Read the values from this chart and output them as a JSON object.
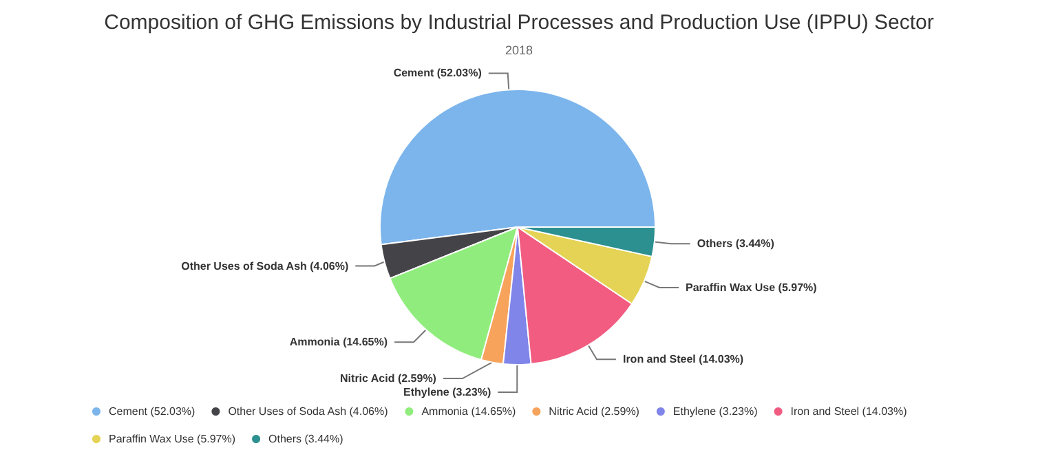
{
  "chart_data": {
    "type": "pie",
    "title": "Composition of GHG Emissions by Industrial Processes and Production Use (IPPU) Sector",
    "subtitle": "2018",
    "categories": [
      "Cement (52.03%)",
      "Other Uses of Soda Ash (4.06%)",
      "Ammonia (14.65%)",
      "Nitric Acid (2.59%)",
      "Ethylene (3.23%)",
      "Iron and Steel (14.03%)",
      "Paraffin Wax Use (5.97%)",
      "Others (3.44%)"
    ],
    "values": [
      52.03,
      4.06,
      14.65,
      2.59,
      3.23,
      14.03,
      5.97,
      3.44
    ],
    "colors": [
      "#7cb5ec",
      "#434348",
      "#90ed7d",
      "#f7a35c",
      "#8085e9",
      "#f15c80",
      "#e4d354",
      "#2b908f"
    ],
    "legend": "bottom"
  }
}
